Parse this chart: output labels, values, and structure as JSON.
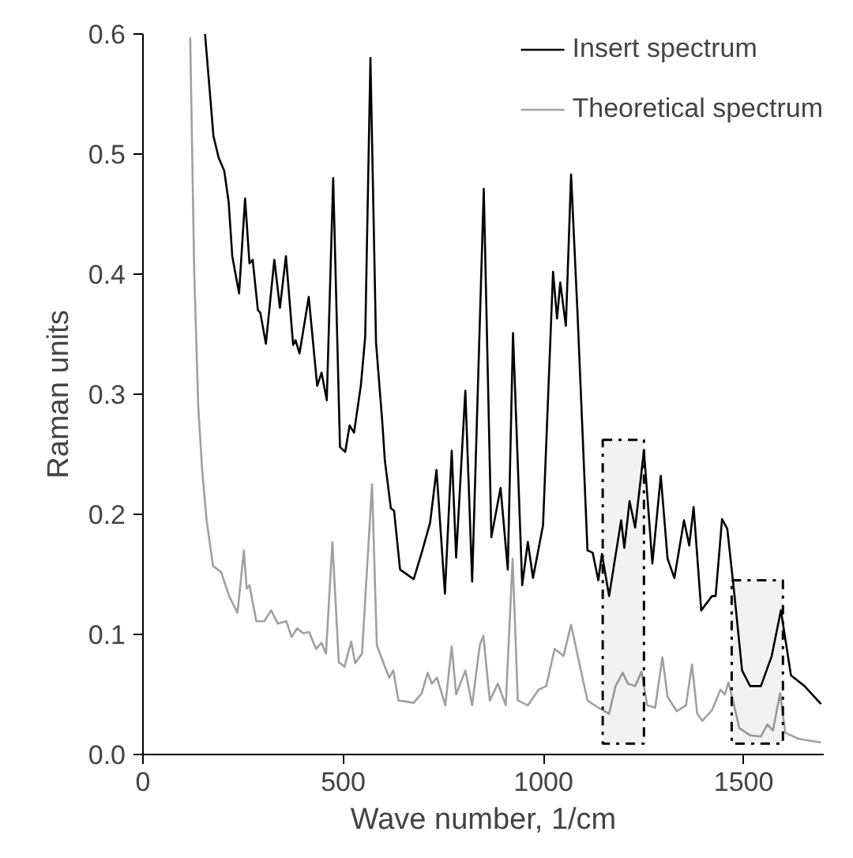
{
  "chart_data": {
    "type": "line",
    "xlabel": "Wave number, 1/cm",
    "ylabel": "Raman units",
    "xlim": [
      0,
      1700
    ],
    "ylim": [
      0,
      0.6
    ],
    "xticks": [
      0,
      500,
      1000,
      1500
    ],
    "yticks": [
      {
        "value": 0,
        "label": "0.0"
      },
      0.1,
      0.2,
      0.3,
      0.4,
      0.5,
      0.6
    ],
    "grid": false,
    "legend": "top right",
    "line_style": "solid",
    "bands": [
      {
        "axis": "x",
        "from": 1148,
        "to": 1251,
        "color": "#000000"
      },
      {
        "axis": "x",
        "from": 1470,
        "to": 1598,
        "color": "#000000"
      }
    ],
    "series": [
      {
        "name": "Insert spectrum",
        "color": "#000000",
        "x": [
          155,
          176,
          189,
          203,
          214,
          223,
          240,
          255,
          266,
          274,
          287,
          293,
          307,
          328,
          342,
          357,
          375,
          381,
          391,
          414,
          435,
          446,
          459,
          475,
          492,
          505,
          516,
          527,
          544,
          555,
          568,
          582,
          598,
          604,
          619,
          627,
          642,
          676,
          696,
          717,
          733,
          754,
          771,
          782,
          805,
          822,
          851,
          870,
          893,
          911,
          924,
          947,
          961,
          974,
          999,
          1024,
          1034,
          1042,
          1056,
          1069,
          1085,
          1110,
          1123,
          1137,
          1146,
          1164,
          1194,
          1202,
          1215,
          1229,
          1251,
          1272,
          1293,
          1310,
          1327,
          1351,
          1364,
          1375,
          1394,
          1421,
          1430,
          1446,
          1459,
          1476,
          1496,
          1516,
          1543,
          1570,
          1593,
          1618,
          1652,
          1693
        ],
        "values": [
          0.6,
          0.515,
          0.497,
          0.486,
          0.46,
          0.415,
          0.384,
          0.463,
          0.409,
          0.412,
          0.37,
          0.368,
          0.342,
          0.412,
          0.372,
          0.415,
          0.341,
          0.345,
          0.334,
          0.381,
          0.307,
          0.318,
          0.295,
          0.48,
          0.256,
          0.252,
          0.274,
          0.268,
          0.307,
          0.348,
          0.58,
          0.343,
          0.275,
          0.245,
          0.205,
          0.203,
          0.154,
          0.146,
          0.168,
          0.193,
          0.237,
          0.134,
          0.253,
          0.164,
          0.303,
          0.144,
          0.471,
          0.181,
          0.222,
          0.154,
          0.351,
          0.141,
          0.177,
          0.147,
          0.191,
          0.402,
          0.363,
          0.393,
          0.357,
          0.483,
          0.368,
          0.17,
          0.168,
          0.145,
          0.167,
          0.132,
          0.195,
          0.172,
          0.211,
          0.189,
          0.253,
          0.159,
          0.232,
          0.163,
          0.147,
          0.195,
          0.174,
          0.206,
          0.12,
          0.132,
          0.132,
          0.196,
          0.188,
          0.136,
          0.07,
          0.057,
          0.057,
          0.082,
          0.12,
          0.066,
          0.057,
          0.042
        ]
      },
      {
        "name": "Theoretical spectrum",
        "color": "#a0a0a0",
        "x": [
          118,
          128,
          138,
          148,
          159,
          175,
          195,
          215,
          236,
          252,
          259,
          266,
          283,
          303,
          320,
          337,
          358,
          371,
          385,
          400,
          415,
          432,
          446,
          457,
          473,
          489,
          503,
          520,
          530,
          547,
          572,
          584,
          602,
          615,
          625,
          638,
          676,
          696,
          711,
          721,
          734,
          755,
          771,
          782,
          805,
          822,
          841,
          850,
          866,
          886,
          906,
          923,
          936,
          961,
          988,
          1007,
          1028,
          1050,
          1069,
          1089,
          1110,
          1137,
          1164,
          1180,
          1198,
          1211,
          1229,
          1245,
          1259,
          1279,
          1297,
          1310,
          1333,
          1356,
          1371,
          1384,
          1397,
          1421,
          1442,
          1453,
          1462,
          1476,
          1489,
          1516,
          1543,
          1559,
          1573,
          1591,
          1604,
          1638,
          1693
        ],
        "values": [
          0.597,
          0.402,
          0.29,
          0.236,
          0.195,
          0.157,
          0.152,
          0.132,
          0.118,
          0.17,
          0.138,
          0.141,
          0.111,
          0.111,
          0.12,
          0.109,
          0.111,
          0.098,
          0.105,
          0.101,
          0.102,
          0.088,
          0.093,
          0.084,
          0.177,
          0.077,
          0.073,
          0.094,
          0.076,
          0.084,
          0.225,
          0.091,
          0.075,
          0.064,
          0.07,
          0.045,
          0.043,
          0.051,
          0.068,
          0.059,
          0.064,
          0.041,
          0.09,
          0.05,
          0.07,
          0.041,
          0.091,
          0.099,
          0.045,
          0.059,
          0.041,
          0.163,
          0.045,
          0.041,
          0.054,
          0.057,
          0.088,
          0.082,
          0.108,
          0.077,
          0.045,
          0.039,
          0.034,
          0.057,
          0.068,
          0.059,
          0.057,
          0.069,
          0.041,
          0.039,
          0.081,
          0.048,
          0.036,
          0.041,
          0.075,
          0.034,
          0.028,
          0.037,
          0.054,
          0.05,
          0.06,
          0.041,
          0.022,
          0.016,
          0.015,
          0.025,
          0.02,
          0.051,
          0.018,
          0.013,
          0.01
        ]
      }
    ]
  }
}
